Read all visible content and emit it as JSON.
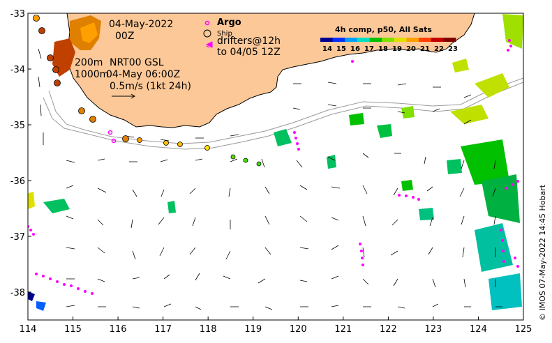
{
  "map": {
    "x_ticks": [
      "114",
      "115",
      "116",
      "117",
      "118",
      "119",
      "120",
      "121",
      "122",
      "123",
      "124",
      "125"
    ],
    "y_ticks": [
      "-33",
      "-34",
      "-35",
      "-36",
      "-37",
      "-38"
    ],
    "lon_range": [
      114,
      125
    ],
    "lat_range": [
      -38.5,
      -33
    ],
    "colors": {
      "land": "#fcc898",
      "border": "#000000",
      "isobath": "#9a9a9a",
      "argo": "#ff00ff",
      "drifter": "#ff00ff",
      "vector": "#000000"
    }
  },
  "annotations": {
    "date": "04-May-2022",
    "hour": "00Z",
    "depth200": "200m",
    "depth1000": "1000m",
    "product": "NRT00 GSL",
    "product_time": "04-May 06:00Z",
    "scale": "0.5m/s (1kt 24h)"
  },
  "legend": {
    "argo": "Argo",
    "ship": "Ship",
    "drifters_line1": "drifters@12h",
    "drifters_line2": "to 04/05 12Z"
  },
  "colorbar": {
    "title": "4h comp, p50, All Sats",
    "ticks": [
      "14",
      "15",
      "16",
      "17",
      "18",
      "19",
      "20",
      "21",
      "22",
      "23"
    ],
    "colors": [
      "#00008f",
      "#0030ff",
      "#00a0ff",
      "#00e0c0",
      "#00c000",
      "#80e000",
      "#e0e000",
      "#ffa000",
      "#ff4000",
      "#c00000",
      "#800000"
    ]
  },
  "credit": "© IMOS 07-May-2022 14:45 Hobart"
}
